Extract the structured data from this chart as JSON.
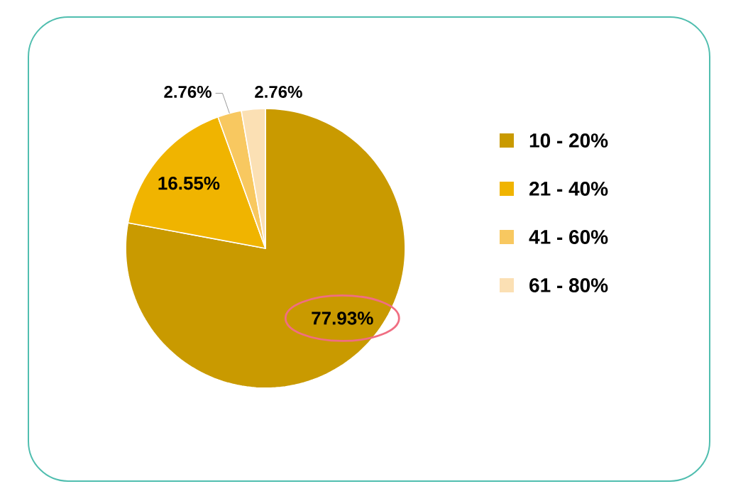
{
  "chart_data": {
    "type": "pie",
    "categories": [
      "10 - 20%",
      "21 - 40%",
      "41 - 60%",
      "61 - 80%"
    ],
    "values": [
      77.93,
      16.55,
      2.76,
      2.76
    ],
    "value_labels": [
      "77.93%",
      "16.55%",
      "2.76%",
      "2.76%"
    ],
    "colors": [
      "#c99a00",
      "#f0b400",
      "#f8c860",
      "#fbe0b4"
    ],
    "legend": "right"
  }
}
